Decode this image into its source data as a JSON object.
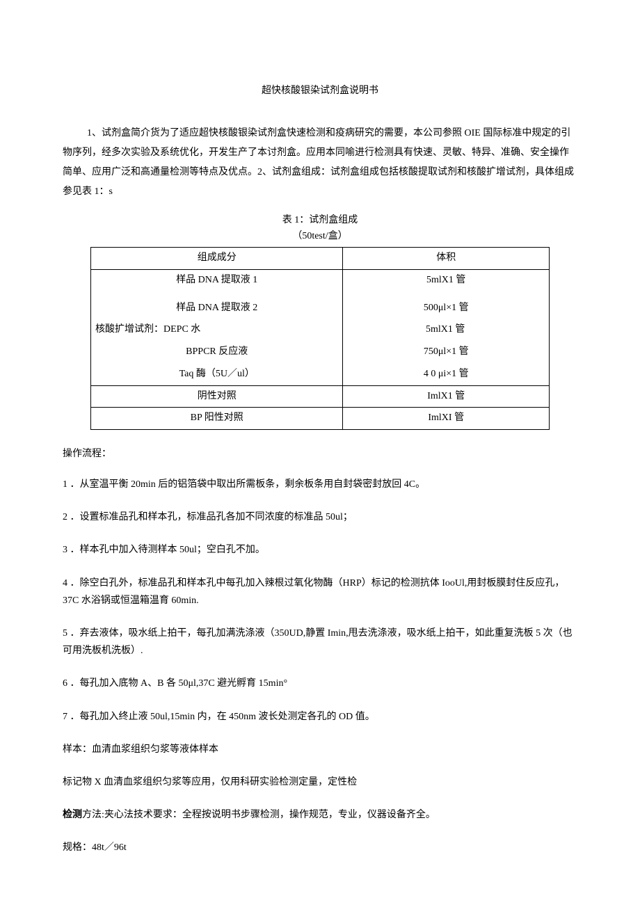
{
  "title": "超快核酸银染试剂盒说明书",
  "intro": "1、试剂盒简介货为了适应超快核酸银染试剂盒快速检测和疫病研究的需要，本公司参照 OIE 国际标准中规定的引物序列，经多次实验及系统优化，开发生产了本讨剂盒。应用本同喻进行检测具有快速、灵敏、特异、准确、安全操作简单、应用广泛和高通量检测等特点及优点。2、试剂盒组成：试剂盒组成包括核酸提取试剂和核酸扩增试剂，具体组成参见表 1：s",
  "table": {
    "caption_line1": "表 1：试剂盒组成",
    "caption_line2": "（50test/盒）",
    "headers": {
      "col1": "组成成分",
      "col2": "体积"
    },
    "rows": [
      {
        "c1": "样品 DNA 提取液 1",
        "c2": "5mlX1 管"
      },
      {
        "c1": "样品 DNA 提取液 2",
        "c2": "500μl×1 管"
      },
      {
        "c1": "核酸扩增试剂：DEPC 水",
        "c2": "5mlX1 管"
      },
      {
        "c1": "BPPCR 反应液",
        "c2": "750μl×1 管"
      },
      {
        "c1": "Taq 酶（5U／ul）",
        "c2": "4 0 μi×1 管"
      },
      {
        "c1": "阴性对照",
        "c2": "ImlX1 管"
      },
      {
        "c1": "BP 阳性对照",
        "c2": "ImlXI 管"
      }
    ]
  },
  "procedure": {
    "header": "操作流程：",
    "steps": [
      "1 ．从室温平衡 20min 后的铝箔袋中取出所需板条，剩余板条用自封袋密封放回 4C。",
      "2 ．设置标准品孔和样本孔，标准品孔各加不同浓度的标准品 50ul；",
      "3 ．样本孔中加入待测样本 50ul；空白孔不加。",
      "4 ．除空白孔外，标准品孔和样本孔中每孔加入辣根过氧化物酶（HRP）标记的检测抗体 IooUl,用封板膜封住反应孔，37C 水浴锅或恒温箱温育 60min.",
      "5 ．弃去液体，吸水纸上拍干，每孔加满洗涤液（350UD,静置 Imin,甩去洗涤液，吸水纸上拍干，如此重复洗板 5 次（也可用洗板机洗板）.",
      "6 ．每孔加入底物 A、B 各 50μl,37C 避光孵育 15min°",
      "7 ．每孔加入终止液 50ul,15min 内，在 450nm 波长处测定各孔的 OD 值。"
    ]
  },
  "footer": {
    "sample": "样本：血清血浆组织匀浆等液体样本",
    "marker": "标记物 X 血清血浆组织匀浆等应用，仅用科研实验检测定量，定性检",
    "detection_label": "检测",
    "detection_rest": "方法:夹心法技术要求：全程按说明书步骤检测，操作规范，专业，仪器设备齐全。",
    "spec": "规格：48t／96t"
  }
}
